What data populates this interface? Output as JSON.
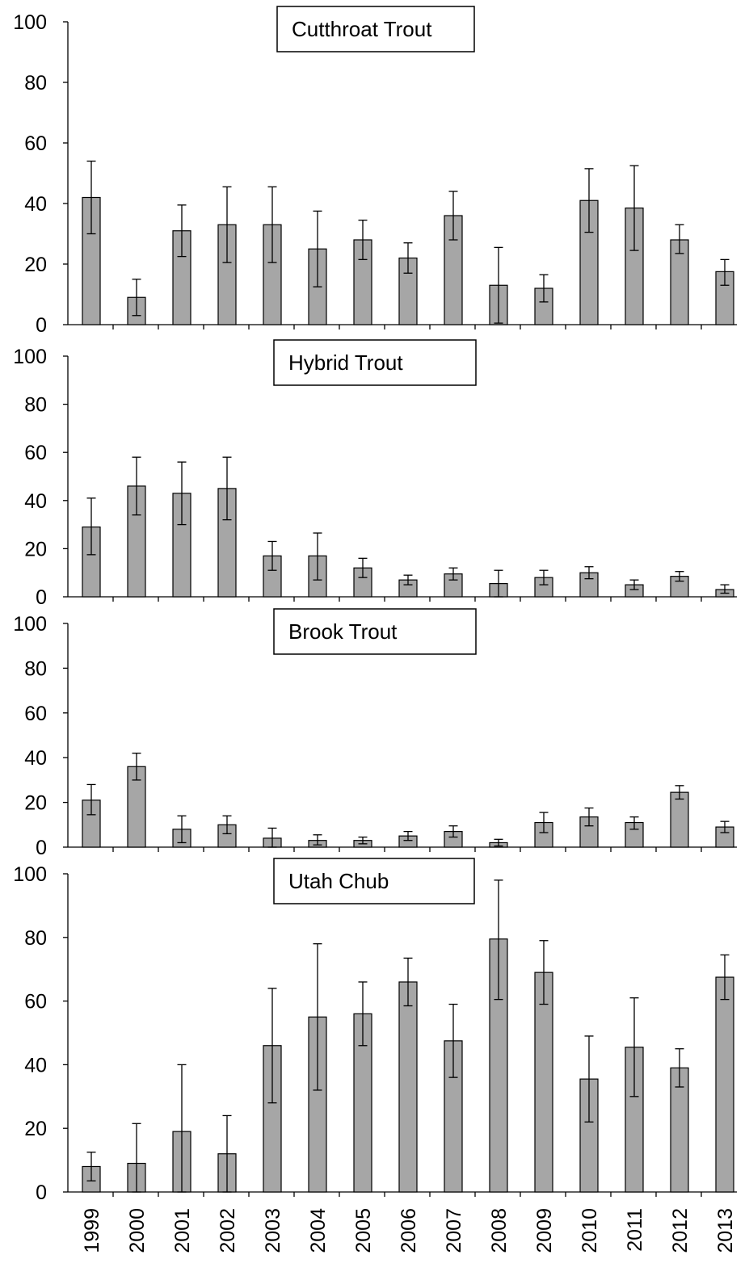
{
  "chart_data": [
    {
      "type": "bar",
      "title": "Cutthroat Trout",
      "categories": [
        "1999",
        "2000",
        "2001",
        "2002",
        "2003",
        "2004",
        "2005",
        "2006",
        "2007",
        "2008",
        "2009",
        "2010",
        "2011",
        "2012",
        "2013"
      ],
      "values": [
        42,
        9,
        31,
        33,
        33,
        25,
        28,
        22,
        36,
        13,
        12,
        41,
        38.5,
        28,
        17.5
      ],
      "err_low": [
        30,
        3,
        22.5,
        20.5,
        20.5,
        12.5,
        21.5,
        17,
        28,
        0.5,
        7.5,
        30.5,
        24.5,
        23.5,
        13
      ],
      "err_high": [
        54,
        15,
        39.5,
        45.5,
        45.5,
        37.5,
        34.5,
        27,
        44,
        25.5,
        16.5,
        51.5,
        52.5,
        33,
        21.5
      ],
      "yticks": [
        "0",
        "20",
        "40",
        "60",
        "80",
        "100"
      ],
      "ylim": [
        0,
        100
      ]
    },
    {
      "type": "bar",
      "title": "Hybrid Trout",
      "categories": [
        "1999",
        "2000",
        "2001",
        "2002",
        "2003",
        "2004",
        "2005",
        "2006",
        "2007",
        "2008",
        "2009",
        "2010",
        "2011",
        "2012",
        "2013"
      ],
      "values": [
        29,
        46,
        43,
        45,
        17,
        17,
        12,
        7,
        9.5,
        5.5,
        8,
        10,
        5,
        8.5,
        3
      ],
      "err_low": [
        17.5,
        34,
        30,
        32,
        11,
        7,
        8,
        5,
        7,
        0,
        5,
        7.5,
        3,
        6.5,
        1.5
      ],
      "err_high": [
        41,
        58,
        56,
        58,
        23,
        26.5,
        16,
        9,
        12,
        11,
        11,
        12.5,
        7,
        10.5,
        5
      ],
      "yticks": [
        "0",
        "20",
        "40",
        "60",
        "80",
        "100"
      ],
      "ylim": [
        0,
        100
      ]
    },
    {
      "type": "bar",
      "title": "Brook Trout",
      "categories": [
        "1999",
        "2000",
        "2001",
        "2002",
        "2003",
        "2004",
        "2005",
        "2006",
        "2007",
        "2008",
        "2009",
        "2010",
        "2011",
        "2012",
        "2013"
      ],
      "values": [
        21,
        36,
        8,
        10,
        4,
        3,
        3,
        5,
        7,
        2,
        11,
        13.5,
        11,
        24.5,
        9
      ],
      "err_low": [
        14.5,
        30,
        2,
        6,
        0,
        1,
        1.5,
        3,
        4.5,
        0.5,
        6.5,
        9.5,
        8,
        21.5,
        6.5
      ],
      "err_high": [
        28,
        42,
        14,
        14,
        8.5,
        5.5,
        4.5,
        7,
        9.5,
        3.5,
        15.5,
        17.5,
        13.5,
        27.5,
        11.5
      ],
      "yticks": [
        "0",
        "20",
        "40",
        "60",
        "80",
        "100"
      ],
      "ylim": [
        0,
        100
      ]
    },
    {
      "type": "bar",
      "title": "Utah Chub",
      "categories": [
        "1999",
        "2000",
        "2001",
        "2002",
        "2003",
        "2004",
        "2005",
        "2006",
        "2007",
        "2008",
        "2009",
        "2010",
        "2011",
        "2012",
        "2013"
      ],
      "values": [
        8,
        9,
        19,
        12,
        46,
        55,
        56,
        66,
        47.5,
        79.5,
        69,
        35.5,
        45.5,
        39,
        67.5
      ],
      "err_low": [
        3.5,
        0,
        0,
        0,
        28,
        32,
        46,
        58.5,
        36,
        60.5,
        59,
        22,
        30,
        33,
        60.5
      ],
      "err_high": [
        12.5,
        21.5,
        40,
        24,
        64,
        78,
        66,
        73.5,
        59,
        98,
        79,
        49,
        61,
        45,
        74.5
      ],
      "yticks": [
        "0",
        "20",
        "40",
        "60",
        "80",
        "100"
      ],
      "ylim": [
        0,
        100
      ]
    }
  ]
}
